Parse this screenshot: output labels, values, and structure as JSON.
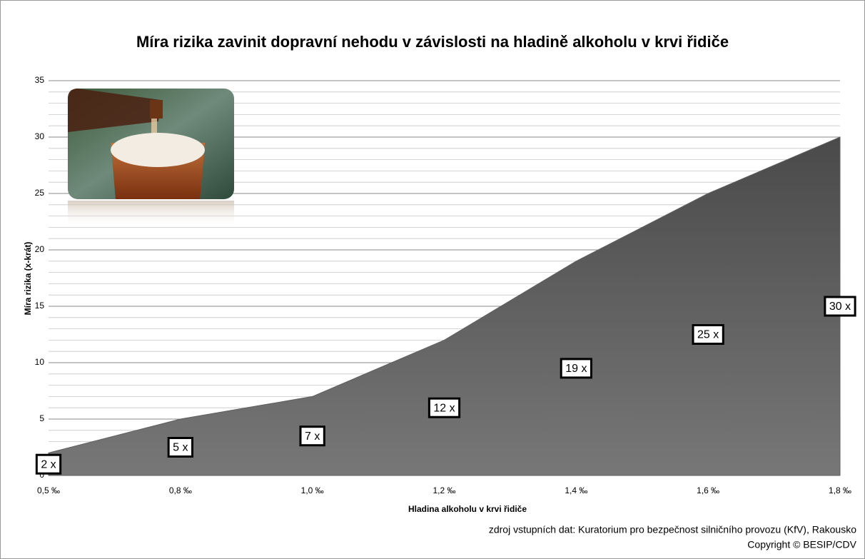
{
  "chart_data": {
    "type": "area",
    "title": "Míra rizika zavinit dopravní nehodu v závislosti na hladině alkoholu v krvi řidiče",
    "x_label": "Hladina  alkoholu  v krvi řidiče",
    "y_label": "Míra rizika  (x-krát)",
    "categories": [
      "0,5 ‰",
      "0,8 ‰",
      "1,0 ‰",
      "1,2 ‰",
      "1,4 ‰",
      "1,6 ‰",
      "1,8 ‰"
    ],
    "values": [
      2,
      5,
      7,
      12,
      19,
      25,
      30
    ],
    "value_labels": [
      "2 x",
      "5 x",
      "7 x",
      "12 x",
      "19 x",
      "25 x",
      "30 x"
    ],
    "color": "#5f5f5f",
    "ylim": [
      0,
      35
    ],
    "yticks": [
      0,
      5,
      10,
      15,
      20,
      25,
      30,
      35
    ],
    "grid": true,
    "minor_grid": true,
    "source": [
      "zdroj vstupních dat: Kuratorium pro bezpečnost silničního provozu (KfV), Rakousko",
      "Copyright © BESIP/CDV"
    ]
  }
}
